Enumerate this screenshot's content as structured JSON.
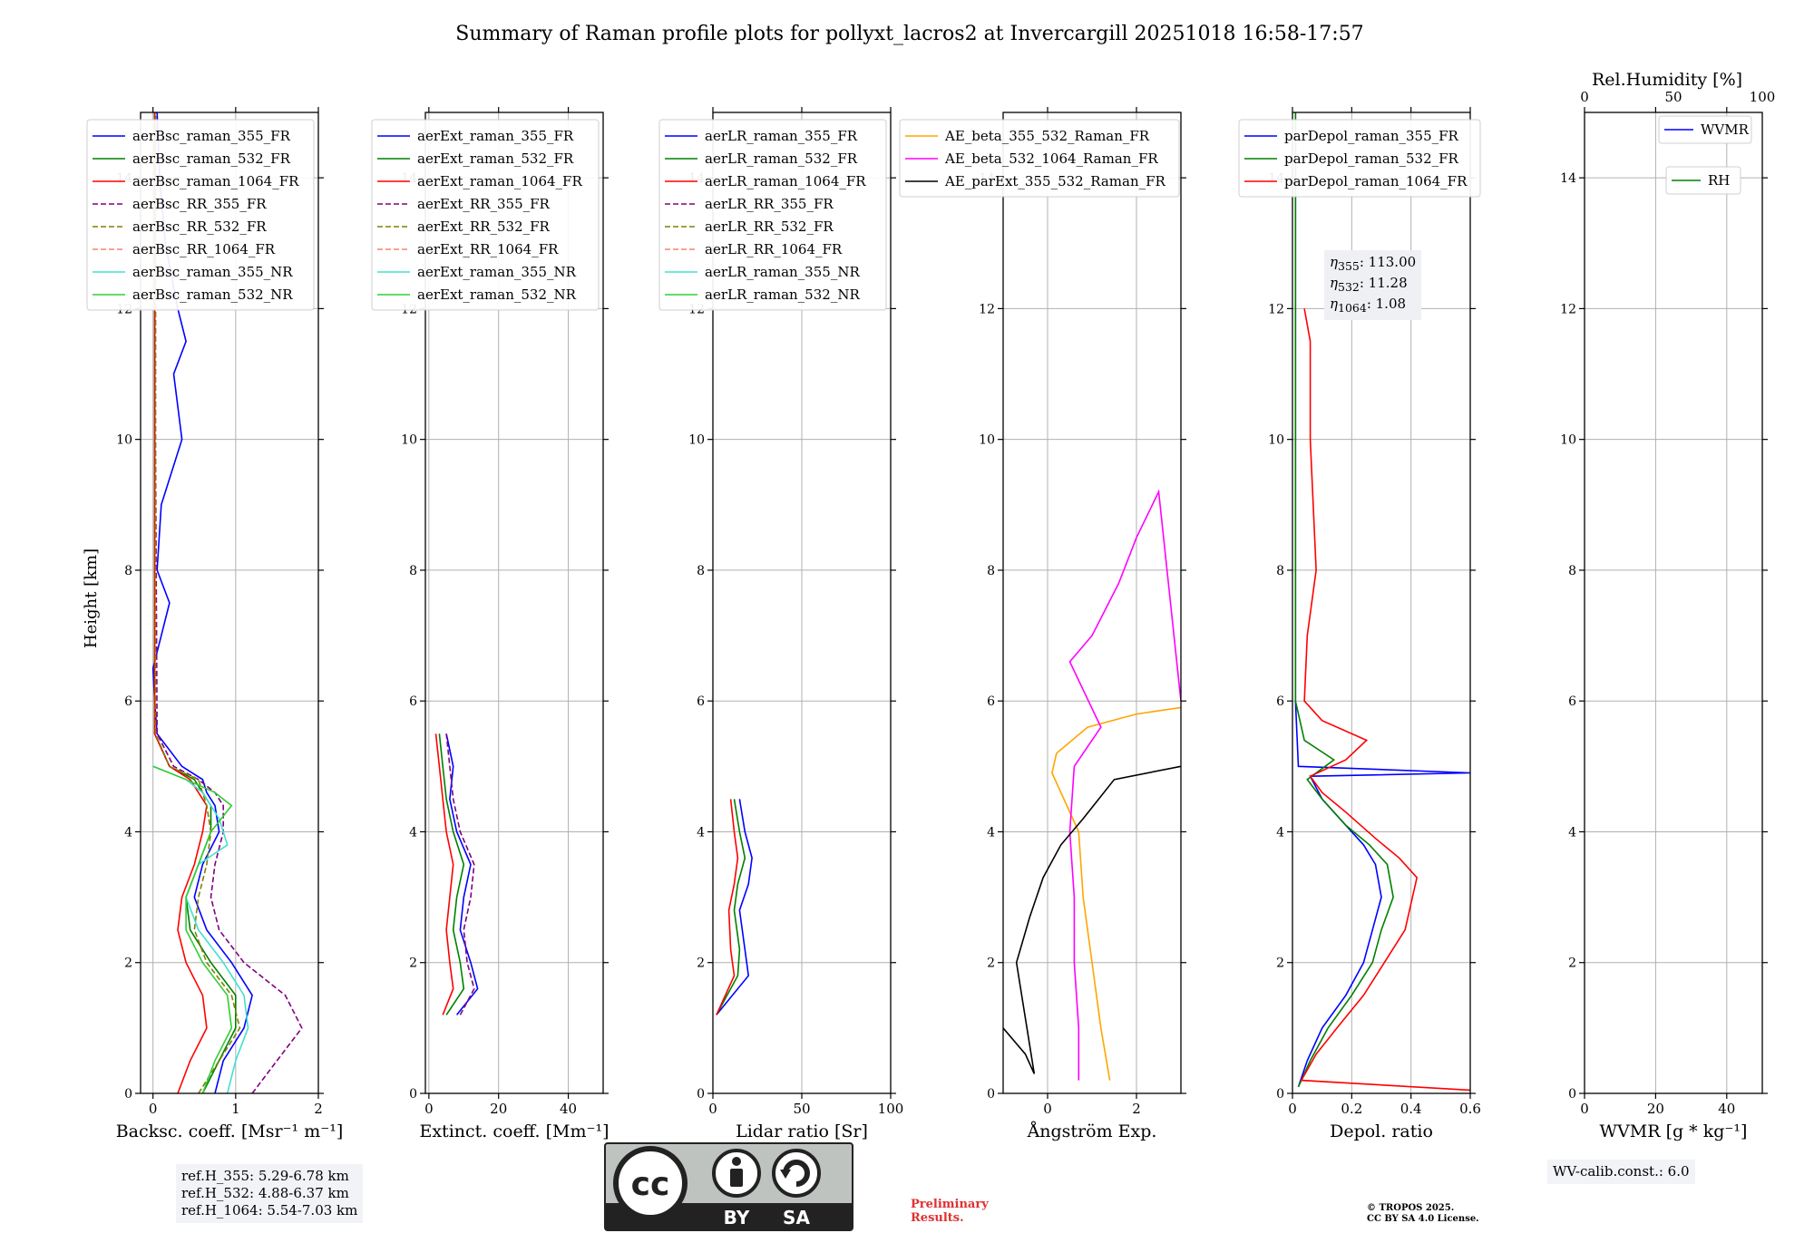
{
  "title": "Summary of Raman profile plots for pollyxt_lacros2 at Invercargill 20251018 16:58-17:57",
  "ylabel": "Height [km]",
  "yticks": [
    0,
    2,
    4,
    6,
    8,
    10,
    12,
    14
  ],
  "ylim": [
    0,
    15
  ],
  "panels": [
    {
      "id": "bsc",
      "xlabel": "Backsc. coeff. [Msr⁻¹ m⁻¹]",
      "xlim": [
        -0.15,
        2
      ],
      "xticks": [
        0,
        1,
        2
      ],
      "legend": [
        {
          "name": "aerBsc_raman_355_FR",
          "color": "#0000ff",
          "dash": false
        },
        {
          "name": "aerBsc_raman_532_FR",
          "color": "#008000",
          "dash": false
        },
        {
          "name": "aerBsc_raman_1064_FR",
          "color": "#ff0000",
          "dash": false
        },
        {
          "name": "aerBsc_RR_355_FR",
          "color": "#800080",
          "dash": true
        },
        {
          "name": "aerBsc_RR_532_FR",
          "color": "#808000",
          "dash": true
        },
        {
          "name": "aerBsc_RR_1064_FR",
          "color": "#fa8072",
          "dash": true
        },
        {
          "name": "aerBsc_raman_355_NR",
          "color": "#40e0d0",
          "dash": false
        },
        {
          "name": "aerBsc_raman_532_NR",
          "color": "#32cd32",
          "dash": false
        }
      ],
      "series": [
        {
          "name": "aerBsc_raman_355_FR",
          "color": "#0000ff",
          "dash": false,
          "x": [
            0.75,
            0.85,
            1.1,
            1.2,
            0.95,
            0.65,
            0.5,
            0.6,
            0.8,
            0.75,
            0.65,
            0.6,
            0.35,
            0.05,
            0.02,
            0.0,
            0.1,
            0.2,
            0.05,
            0.1,
            0.35,
            0.25,
            0.4,
            0.3,
            0.15,
            0.08,
            0.05
          ],
          "y": [
            0.0,
            0.5,
            1.0,
            1.5,
            2.0,
            2.5,
            3.0,
            3.5,
            4.0,
            4.4,
            4.6,
            4.8,
            5.0,
            5.5,
            6.0,
            6.5,
            7.0,
            7.5,
            8.0,
            9.0,
            10.0,
            11.0,
            11.5,
            12.0,
            13.0,
            14.0,
            15.0
          ]
        },
        {
          "name": "aerBsc_raman_532_FR",
          "color": "#008000",
          "dash": false,
          "x": [
            0.6,
            0.8,
            1.0,
            1.0,
            0.7,
            0.45,
            0.4,
            0.55,
            0.7,
            0.7,
            0.6,
            0.5,
            0.2,
            0.02,
            0.02,
            0.02,
            0.02
          ],
          "y": [
            0.0,
            0.5,
            1.0,
            1.5,
            2.0,
            2.5,
            3.0,
            3.5,
            4.0,
            4.4,
            4.6,
            4.8,
            5.0,
            5.5,
            8.0,
            12.0,
            15.0
          ]
        },
        {
          "name": "aerBsc_raman_1064_FR",
          "color": "#ff0000",
          "dash": false,
          "x": [
            0.3,
            0.45,
            0.65,
            0.6,
            0.4,
            0.3,
            0.35,
            0.5,
            0.6,
            0.65,
            0.55,
            0.45,
            0.2,
            0.02,
            0.02,
            0.02
          ],
          "y": [
            0.0,
            0.5,
            1.0,
            1.5,
            2.0,
            2.5,
            3.0,
            3.5,
            4.0,
            4.4,
            4.6,
            4.8,
            5.0,
            5.5,
            10.0,
            15.0
          ]
        },
        {
          "name": "aerBsc_RR_355_FR",
          "color": "#800080",
          "dash": true,
          "x": [
            1.2,
            1.5,
            1.8,
            1.6,
            1.1,
            0.8,
            0.7,
            0.75,
            0.85,
            0.85,
            0.75,
            0.55,
            0.25,
            0.05,
            0.03,
            0.03
          ],
          "y": [
            0.0,
            0.5,
            1.0,
            1.5,
            2.0,
            2.5,
            3.0,
            3.5,
            4.0,
            4.4,
            4.6,
            4.8,
            5.0,
            5.5,
            10.0,
            15.0
          ]
        },
        {
          "name": "aerBsc_RR_532_FR",
          "color": "#808000",
          "dash": true,
          "x": [
            0.55,
            0.8,
            1.05,
            0.95,
            0.65,
            0.5,
            0.55,
            0.65,
            0.7,
            0.65,
            0.55,
            0.2,
            0.03,
            0.03
          ],
          "y": [
            0.0,
            0.5,
            1.0,
            1.5,
            2.0,
            2.5,
            3.0,
            3.5,
            4.0,
            4.4,
            4.8,
            5.0,
            5.5,
            15.0
          ]
        },
        {
          "name": "aerBsc_raman_355_NR",
          "color": "#40e0d0",
          "dash": false,
          "x": [
            0.9,
            1.0,
            1.15,
            1.1,
            0.85,
            0.55,
            0.4,
            0.55,
            0.9,
            0.8,
            0.6,
            0.4,
            0.0
          ],
          "y": [
            0.0,
            0.5,
            1.0,
            1.5,
            2.0,
            2.5,
            3.0,
            3.5,
            3.8,
            4.2,
            4.6,
            4.8,
            5.0
          ]
        },
        {
          "name": "aerBsc_raman_532_NR",
          "color": "#32cd32",
          "dash": false,
          "x": [
            0.6,
            0.75,
            0.95,
            0.9,
            0.6,
            0.4,
            0.4,
            0.55,
            0.7,
            0.95,
            0.75,
            0.4,
            0.0
          ],
          "y": [
            0.0,
            0.5,
            1.0,
            1.5,
            2.0,
            2.5,
            3.0,
            3.5,
            4.0,
            4.4,
            4.6,
            4.8,
            5.0
          ]
        }
      ]
    },
    {
      "id": "ext",
      "xlabel": "Extinct. coeff. [Mm⁻¹]",
      "xlim": [
        -1,
        50
      ],
      "xticks": [
        0,
        20,
        40
      ],
      "legend": [
        {
          "name": "aerExt_raman_355_FR",
          "color": "#0000ff",
          "dash": false
        },
        {
          "name": "aerExt_raman_532_FR",
          "color": "#008000",
          "dash": false
        },
        {
          "name": "aerExt_raman_1064_FR",
          "color": "#ff0000",
          "dash": false
        },
        {
          "name": "aerExt_RR_355_FR",
          "color": "#800080",
          "dash": true
        },
        {
          "name": "aerExt_RR_532_FR",
          "color": "#808000",
          "dash": true
        },
        {
          "name": "aerExt_RR_1064_FR",
          "color": "#fa8072",
          "dash": true
        },
        {
          "name": "aerExt_raman_355_NR",
          "color": "#40e0d0",
          "dash": false
        },
        {
          "name": "aerExt_raman_532_NR",
          "color": "#32cd32",
          "dash": false
        }
      ],
      "series": [
        {
          "name": "aerExt_raman_355_FR",
          "color": "#0000ff",
          "dash": false,
          "x": [
            8,
            14,
            12,
            9,
            10,
            12,
            8,
            6,
            7,
            5
          ],
          "y": [
            1.2,
            1.6,
            2.0,
            2.5,
            3.0,
            3.5,
            4.0,
            4.5,
            5.0,
            5.5
          ]
        },
        {
          "name": "aerExt_raman_532_FR",
          "color": "#008000",
          "dash": false,
          "x": [
            5,
            10,
            9,
            7,
            8,
            10,
            7,
            5,
            4,
            3
          ],
          "y": [
            1.2,
            1.6,
            2.0,
            2.5,
            3.0,
            3.5,
            4.0,
            4.5,
            5.0,
            5.5
          ]
        },
        {
          "name": "aerExt_raman_1064_FR",
          "color": "#ff0000",
          "dash": false,
          "x": [
            4,
            7,
            6,
            5,
            6,
            7,
            5,
            4,
            3,
            2
          ],
          "y": [
            1.2,
            1.6,
            2.0,
            2.5,
            3.0,
            3.5,
            4.0,
            4.5,
            5.0,
            5.5
          ]
        },
        {
          "name": "aerExt_RR_355_FR",
          "color": "#800080",
          "dash": true,
          "x": [
            9,
            13,
            11,
            10,
            12,
            13,
            9,
            7,
            6,
            5
          ],
          "y": [
            1.2,
            1.6,
            2.0,
            2.5,
            3.0,
            3.5,
            4.0,
            4.5,
            5.0,
            5.5
          ]
        }
      ]
    },
    {
      "id": "lr",
      "xlabel": "Lidar ratio [Sr]",
      "xlim": [
        0,
        100
      ],
      "xticks": [
        0,
        50,
        100
      ],
      "legend": [
        {
          "name": "aerLR_raman_355_FR",
          "color": "#0000ff",
          "dash": false
        },
        {
          "name": "aerLR_raman_532_FR",
          "color": "#008000",
          "dash": false
        },
        {
          "name": "aerLR_raman_1064_FR",
          "color": "#ff0000",
          "dash": false
        },
        {
          "name": "aerLR_RR_355_FR",
          "color": "#800080",
          "dash": true
        },
        {
          "name": "aerLR_RR_532_FR",
          "color": "#808000",
          "dash": true
        },
        {
          "name": "aerLR_RR_1064_FR",
          "color": "#fa8072",
          "dash": true
        },
        {
          "name": "aerLR_raman_355_NR",
          "color": "#40e0d0",
          "dash": false
        },
        {
          "name": "aerLR_raman_532_NR",
          "color": "#32cd32",
          "dash": false
        }
      ],
      "series": [
        {
          "name": "aerLR_raman_355_FR",
          "color": "#0000ff",
          "dash": false,
          "x": [
            2,
            20,
            18,
            15,
            20,
            22,
            18,
            15
          ],
          "y": [
            1.2,
            1.8,
            2.2,
            2.8,
            3.2,
            3.6,
            4.0,
            4.5
          ]
        },
        {
          "name": "aerLR_raman_532_FR",
          "color": "#008000",
          "dash": false,
          "x": [
            2,
            14,
            15,
            12,
            14,
            18,
            15,
            12
          ],
          "y": [
            1.2,
            1.8,
            2.2,
            2.8,
            3.2,
            3.6,
            4.0,
            4.5
          ]
        },
        {
          "name": "aerLR_raman_1064_FR",
          "color": "#ff0000",
          "dash": false,
          "x": [
            2,
            12,
            10,
            9,
            12,
            14,
            12,
            10
          ],
          "y": [
            1.2,
            1.8,
            2.2,
            2.8,
            3.2,
            3.6,
            4.0,
            4.5
          ]
        }
      ]
    },
    {
      "id": "ae",
      "xlabel": "Ångström Exp.",
      "xlim": [
        -1,
        3
      ],
      "xticks": [
        0,
        2
      ],
      "legend": [
        {
          "name": "AE_beta_355_532_Raman_FR",
          "color": "#ffa500",
          "dash": false
        },
        {
          "name": "AE_beta_532_1064_Raman_FR",
          "color": "#ff00ff",
          "dash": false
        },
        {
          "name": "AE_parExt_355_532_Raman_FR",
          "color": "#000000",
          "dash": false
        }
      ],
      "series": [
        {
          "name": "AE_beta_355_532_Raman_FR",
          "color": "#ffa500",
          "dash": false,
          "x": [
            1.4,
            1.2,
            1.0,
            0.8,
            0.7,
            0.3,
            0.1,
            0.2,
            0.9,
            2.0,
            3.0
          ],
          "y": [
            0.2,
            1.0,
            2.0,
            3.0,
            4.0,
            4.6,
            4.9,
            5.2,
            5.6,
            5.8,
            5.9
          ]
        },
        {
          "name": "AE_beta_532_1064_Raman_FR",
          "color": "#ff00ff",
          "dash": false,
          "x": [
            0.7,
            0.7,
            0.6,
            0.6,
            0.5,
            0.6,
            1.2,
            0.5,
            1.0,
            1.6,
            2.0,
            2.5,
            3.0
          ],
          "y": [
            0.2,
            1.0,
            2.0,
            3.0,
            4.0,
            5.0,
            5.6,
            6.6,
            7.0,
            7.8,
            8.5,
            9.2,
            6.0
          ]
        },
        {
          "name": "AE_parExt_355_532_Raman_FR",
          "color": "#000000",
          "dash": false,
          "x": [
            -1,
            -0.5,
            -0.3,
            -0.7,
            -0.4,
            -0.1,
            0.3,
            0.8,
            1.5,
            3.0
          ],
          "y": [
            1.0,
            0.6,
            0.3,
            2.0,
            2.7,
            3.3,
            3.8,
            4.2,
            4.8,
            5.0
          ]
        }
      ]
    },
    {
      "id": "depol",
      "xlabel": "Depol. ratio",
      "xlim": [
        0,
        0.6
      ],
      "xticks": [
        0.0,
        0.2,
        0.4,
        0.6
      ],
      "legend": [
        {
          "name": "parDepol_raman_355_FR",
          "color": "#0000ff",
          "dash": false
        },
        {
          "name": "parDepol_raman_532_FR",
          "color": "#008000",
          "dash": false
        },
        {
          "name": "parDepol_raman_1064_FR",
          "color": "#ff0000",
          "dash": false
        }
      ],
      "eta": [
        {
          "wl": "355",
          "value": ": 113.00"
        },
        {
          "wl": "532",
          "value": ": 11.28"
        },
        {
          "wl": "1064",
          "value": ": 1.08"
        }
      ],
      "series": [
        {
          "name": "parDepol_raman_355_FR",
          "color": "#0000ff",
          "dash": false,
          "x": [
            0.02,
            0.05,
            0.1,
            0.18,
            0.24,
            0.27,
            0.3,
            0.28,
            0.24,
            0.18,
            0.1,
            0.06,
            0.6,
            0.02,
            0.01,
            0.01
          ],
          "y": [
            0.1,
            0.5,
            1.0,
            1.5,
            2.0,
            2.5,
            3.0,
            3.5,
            3.8,
            4.1,
            4.5,
            4.85,
            4.9,
            5.0,
            6.0,
            15.0
          ]
        },
        {
          "name": "parDepol_raman_532_FR",
          "color": "#008000",
          "dash": false,
          "x": [
            0.02,
            0.06,
            0.12,
            0.2,
            0.27,
            0.3,
            0.34,
            0.32,
            0.26,
            0.18,
            0.1,
            0.05,
            0.14,
            0.04,
            0.01,
            0.01
          ],
          "y": [
            0.1,
            0.5,
            1.0,
            1.5,
            2.0,
            2.5,
            3.0,
            3.5,
            3.8,
            4.1,
            4.5,
            4.8,
            5.1,
            5.4,
            6.0,
            15.0
          ]
        },
        {
          "name": "parDepol_raman_1064_FR",
          "color": "#ff0000",
          "dash": false,
          "x": [
            0.6,
            0.03,
            0.08,
            0.15,
            0.24,
            0.31,
            0.38,
            0.42,
            0.36,
            0.28,
            0.18,
            0.1,
            0.06,
            0.18,
            0.25,
            0.1,
            0.04,
            0.05,
            0.08,
            0.06,
            0.06,
            0.04
          ],
          "y": [
            0.05,
            0.2,
            0.6,
            1.0,
            1.5,
            2.0,
            2.5,
            3.3,
            3.6,
            3.9,
            4.3,
            4.6,
            4.85,
            5.1,
            5.4,
            5.7,
            6.0,
            7.0,
            8.0,
            10.0,
            11.5,
            12.0
          ]
        }
      ]
    },
    {
      "id": "wv",
      "xlabel": "WVMR [g * kg⁻¹]",
      "xlim": [
        0,
        50
      ],
      "xticks": [
        0,
        20,
        40
      ],
      "toplabel": "Rel.Humidity [%]",
      "toplim": [
        0,
        100
      ],
      "topticks": [
        0,
        50,
        100
      ],
      "legend": [
        {
          "name": "WVMR",
          "color": "#0000ff",
          "dash": false
        },
        {
          "name": "RH",
          "color": "#008000",
          "dash": false
        }
      ],
      "series": []
    }
  ],
  "ref_box": [
    "ref.H_355: 5.29-6.78 km",
    "ref.H_532: 4.88-6.37 km",
    "ref.H_1064: 5.54-7.03 km"
  ],
  "wv_box": "WV-calib.const.: 6.0",
  "prelim_lines": [
    "Preliminary",
    "Results."
  ],
  "copyright_lines": [
    "© TROPOS 2025.",
    "CC BY SA 4.0 License."
  ],
  "license_badge": {
    "left": "BY",
    "right": "SA",
    "logo": "cc"
  }
}
